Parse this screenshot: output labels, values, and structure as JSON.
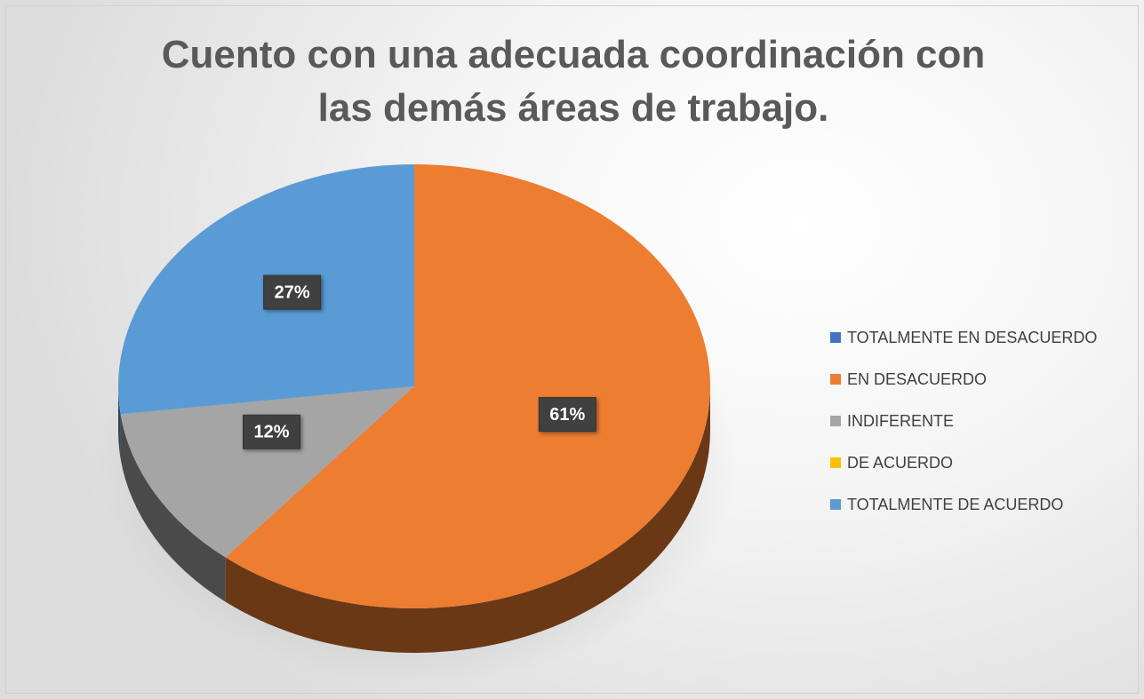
{
  "chart_data": {
    "type": "pie",
    "title": "Cuento con una adecuada coordinación con las demás áreas de trabajo.",
    "categories": [
      "TOTALMENTE EN DESACUERDO",
      "EN DESACUERDO",
      "INDIFERENTE",
      "DE ACUERDO",
      "TOTALMENTE DE ACUERDO"
    ],
    "values": [
      0,
      61,
      12,
      0,
      27
    ],
    "value_labels": [
      null,
      "61%",
      "12%",
      null,
      "27%"
    ],
    "colors": [
      "#4472c4",
      "#ed7d31",
      "#a5a5a5",
      "#ffc000",
      "#5b9bd5"
    ],
    "legend": "right"
  }
}
